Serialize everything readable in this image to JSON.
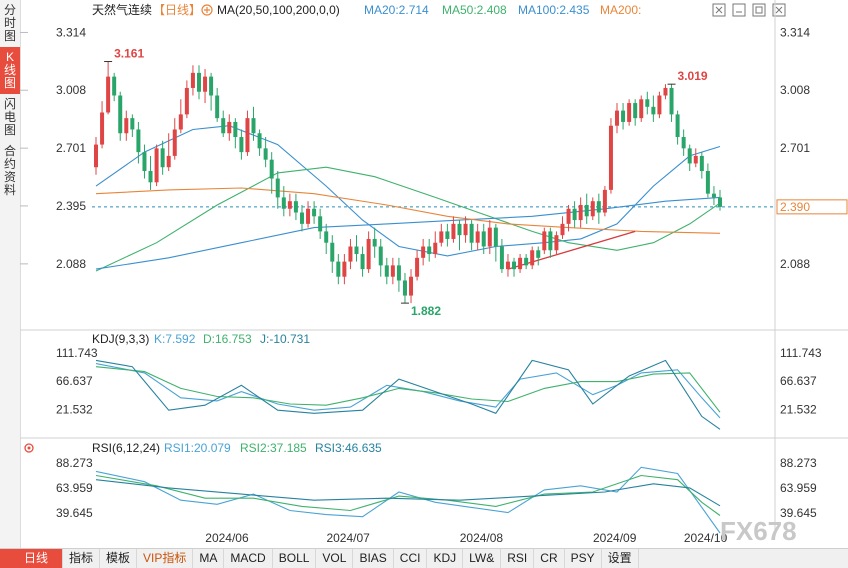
{
  "sidebar": {
    "tabs": [
      {
        "label": "分时图"
      },
      {
        "label": "K线图"
      },
      {
        "label": "闪电图"
      },
      {
        "label": "合约资料"
      }
    ]
  },
  "header": {
    "title": "天然气连续",
    "period": "【日线】",
    "ma_label": "MA(20,50,100,200,0,0)",
    "ma_values": [
      {
        "text": "MA20:2.714",
        "color": "#3a8fd0"
      },
      {
        "text": "MA50:2.408",
        "color": "#3fb26c"
      },
      {
        "text": "MA100:2.435",
        "color": "#3a8fd0"
      },
      {
        "text": "MA200:",
        "color": "#e8853a"
      }
    ]
  },
  "kdj_header": {
    "label": "KDJ(9,3,3)",
    "k": "K:7.592",
    "d": "D:16.753",
    "j": "J:-10.731"
  },
  "rsi_header": {
    "label": "RSI(6,12,24)",
    "rsi1": "RSI1:20.079",
    "rsi2": "RSI2:37.185",
    "rsi3": "RSI3:46.635"
  },
  "watermark": "FX678",
  "bottom_bar": {
    "items": [
      "日线",
      "指标",
      "模板",
      "VIP指标",
      "MA",
      "MACD",
      "BOLL",
      "VOL",
      "BIAS",
      "CCI",
      "KDJ",
      "LW&",
      "RSI",
      "CR",
      "PSY",
      "设置"
    ]
  },
  "chart_data": {
    "type": "candlestick",
    "price_axis": {
      "ticks": [
        3.314,
        3.008,
        2.701,
        2.395,
        2.088
      ],
      "range": [
        1.78,
        3.38
      ]
    },
    "x_axis": {
      "labels": [
        "2024/06",
        "2024/07",
        "2024/08",
        "2024/09",
        "2024/10"
      ]
    },
    "last_price": 2.39,
    "annotations": {
      "high": "3.161",
      "low": "1.882",
      "recent_high": "3.019"
    },
    "candles": [
      [
        2.6,
        2.72,
        2.56,
        2.76
      ],
      [
        2.72,
        2.89,
        2.7,
        2.95
      ],
      [
        2.89,
        3.08,
        2.88,
        3.16
      ],
      [
        3.08,
        2.98,
        2.95,
        3.1
      ],
      [
        2.98,
        2.78,
        2.74,
        3.0
      ],
      [
        2.78,
        2.86,
        2.74,
        2.9
      ],
      [
        2.86,
        2.8,
        2.76,
        2.88
      ],
      [
        2.8,
        2.68,
        2.62,
        2.84
      ],
      [
        2.68,
        2.58,
        2.54,
        2.72
      ],
      [
        2.58,
        2.52,
        2.48,
        2.66
      ],
      [
        2.52,
        2.7,
        2.5,
        2.72
      ],
      [
        2.7,
        2.6,
        2.56,
        2.74
      ],
      [
        2.6,
        2.66,
        2.58,
        2.78
      ],
      [
        2.66,
        2.8,
        2.64,
        2.86
      ],
      [
        2.8,
        2.88,
        2.78,
        2.96
      ],
      [
        2.88,
        3.02,
        2.86,
        3.06
      ],
      [
        3.02,
        3.1,
        2.98,
        3.14
      ],
      [
        3.1,
        3.0,
        2.96,
        3.14
      ],
      [
        3.0,
        3.08,
        2.94,
        3.12
      ],
      [
        3.08,
        2.98,
        2.9,
        3.1
      ],
      [
        2.98,
        2.86,
        2.84,
        3.02
      ],
      [
        2.86,
        2.78,
        2.76,
        2.9
      ],
      [
        2.78,
        2.84,
        2.74,
        2.88
      ],
      [
        2.84,
        2.76,
        2.7,
        2.86
      ],
      [
        2.76,
        2.68,
        2.64,
        2.8
      ],
      [
        2.68,
        2.86,
        2.66,
        2.9
      ],
      [
        2.86,
        2.78,
        2.74,
        2.92
      ],
      [
        2.78,
        2.7,
        2.66,
        2.8
      ],
      [
        2.7,
        2.64,
        2.6,
        2.76
      ],
      [
        2.64,
        2.54,
        2.46,
        2.68
      ],
      [
        2.54,
        2.44,
        2.38,
        2.58
      ],
      [
        2.44,
        2.38,
        2.34,
        2.5
      ],
      [
        2.38,
        2.42,
        2.34,
        2.46
      ],
      [
        2.42,
        2.36,
        2.32,
        2.46
      ],
      [
        2.36,
        2.3,
        2.26,
        2.4
      ],
      [
        2.3,
        2.38,
        2.28,
        2.42
      ],
      [
        2.38,
        2.34,
        2.3,
        2.42
      ],
      [
        2.34,
        2.26,
        2.22,
        2.38
      ],
      [
        2.26,
        2.2,
        2.14,
        2.3
      ],
      [
        2.2,
        2.1,
        2.04,
        2.24
      ],
      [
        2.1,
        2.02,
        1.98,
        2.14
      ],
      [
        2.02,
        2.1,
        1.98,
        2.14
      ],
      [
        2.1,
        2.18,
        2.06,
        2.22
      ],
      [
        2.18,
        2.14,
        2.1,
        2.24
      ],
      [
        2.14,
        2.06,
        2.02,
        2.18
      ],
      [
        2.06,
        2.22,
        2.04,
        2.26
      ],
      [
        2.22,
        2.18,
        2.12,
        2.28
      ],
      [
        2.18,
        2.08,
        2.02,
        2.22
      ],
      [
        2.08,
        2.02,
        1.98,
        2.12
      ],
      [
        2.02,
        2.08,
        1.98,
        2.12
      ],
      [
        2.08,
        2.0,
        1.94,
        2.12
      ],
      [
        2.0,
        1.92,
        1.88,
        2.04
      ],
      [
        1.92,
        2.02,
        1.88,
        2.06
      ],
      [
        2.02,
        2.12,
        2.0,
        2.16
      ],
      [
        2.12,
        2.18,
        2.08,
        2.22
      ],
      [
        2.18,
        2.14,
        2.1,
        2.22
      ],
      [
        2.14,
        2.2,
        2.12,
        2.26
      ],
      [
        2.2,
        2.26,
        2.18,
        2.3
      ],
      [
        2.26,
        2.22,
        2.18,
        2.3
      ],
      [
        2.22,
        2.3,
        2.2,
        2.34
      ],
      [
        2.3,
        2.24,
        2.16,
        2.32
      ],
      [
        2.24,
        2.3,
        2.2,
        2.34
      ],
      [
        2.3,
        2.2,
        2.16,
        2.32
      ],
      [
        2.2,
        2.26,
        2.16,
        2.3
      ],
      [
        2.26,
        2.18,
        2.14,
        2.3
      ],
      [
        2.18,
        2.28,
        2.14,
        2.32
      ],
      [
        2.28,
        2.18,
        2.1,
        2.3
      ],
      [
        2.18,
        2.06,
        2.04,
        2.22
      ],
      [
        2.06,
        2.1,
        2.02,
        2.14
      ],
      [
        2.1,
        2.06,
        2.02,
        2.12
      ],
      [
        2.06,
        2.12,
        2.04,
        2.14
      ],
      [
        2.12,
        2.08,
        2.06,
        2.14
      ],
      [
        2.08,
        2.16,
        2.06,
        2.18
      ],
      [
        2.16,
        2.12,
        2.08,
        2.18
      ],
      [
        2.16,
        2.26,
        2.14,
        2.28
      ],
      [
        2.26,
        2.16,
        2.12,
        2.28
      ],
      [
        2.16,
        2.24,
        2.14,
        2.26
      ],
      [
        2.24,
        2.3,
        2.22,
        2.34
      ],
      [
        2.3,
        2.38,
        2.26,
        2.4
      ],
      [
        2.38,
        2.32,
        2.28,
        2.42
      ],
      [
        2.32,
        2.4,
        2.28,
        2.44
      ],
      [
        2.4,
        2.34,
        2.3,
        2.46
      ],
      [
        2.34,
        2.42,
        2.32,
        2.44
      ],
      [
        2.42,
        2.36,
        2.3,
        2.46
      ],
      [
        2.36,
        2.48,
        2.34,
        2.5
      ],
      [
        2.48,
        2.82,
        2.46,
        2.86
      ],
      [
        2.82,
        2.9,
        2.78,
        2.94
      ],
      [
        2.9,
        2.84,
        2.8,
        2.94
      ],
      [
        2.84,
        2.94,
        2.82,
        2.96
      ],
      [
        2.94,
        2.86,
        2.82,
        2.96
      ],
      [
        2.86,
        2.96,
        2.84,
        2.98
      ],
      [
        2.96,
        2.92,
        2.88,
        3.0
      ],
      [
        2.92,
        2.88,
        2.84,
        2.98
      ],
      [
        2.88,
        2.98,
        2.86,
        3.0
      ],
      [
        2.98,
        3.02,
        2.96,
        3.04
      ],
      [
        3.02,
        2.88,
        2.84,
        3.04
      ],
      [
        2.88,
        2.76,
        2.72,
        2.9
      ],
      [
        2.76,
        2.7,
        2.66,
        2.8
      ],
      [
        2.7,
        2.62,
        2.58,
        2.72
      ],
      [
        2.62,
        2.66,
        2.6,
        2.7
      ],
      [
        2.66,
        2.58,
        2.54,
        2.68
      ],
      [
        2.58,
        2.46,
        2.44,
        2.62
      ],
      [
        2.46,
        2.44,
        2.4,
        2.5
      ],
      [
        2.44,
        2.39,
        2.37,
        2.48
      ]
    ],
    "ma_series": [
      {
        "name": "MA20",
        "color": "#3a8fd0",
        "points": [
          [
            0,
            2.5
          ],
          [
            8,
            2.68
          ],
          [
            16,
            2.8
          ],
          [
            22,
            2.82
          ],
          [
            30,
            2.72
          ],
          [
            38,
            2.5
          ],
          [
            44,
            2.32
          ],
          [
            50,
            2.18
          ],
          [
            58,
            2.13
          ],
          [
            66,
            2.18
          ],
          [
            74,
            2.2
          ],
          [
            80,
            2.22
          ],
          [
            86,
            2.3
          ],
          [
            92,
            2.5
          ],
          [
            98,
            2.66
          ],
          [
            103,
            2.71
          ]
        ]
      },
      {
        "name": "MA50",
        "color": "#3fb26c",
        "points": [
          [
            0,
            2.05
          ],
          [
            10,
            2.2
          ],
          [
            20,
            2.4
          ],
          [
            30,
            2.57
          ],
          [
            38,
            2.6
          ],
          [
            46,
            2.55
          ],
          [
            56,
            2.44
          ],
          [
            64,
            2.35
          ],
          [
            72,
            2.26
          ],
          [
            78,
            2.2
          ],
          [
            86,
            2.16
          ],
          [
            92,
            2.2
          ],
          [
            98,
            2.3
          ],
          [
            103,
            2.41
          ]
        ]
      },
      {
        "name": "MA100",
        "color": "#3a8fd0",
        "points": [
          [
            0,
            2.06
          ],
          [
            12,
            2.12
          ],
          [
            24,
            2.2
          ],
          [
            36,
            2.28
          ],
          [
            48,
            2.3
          ],
          [
            60,
            2.32
          ],
          [
            72,
            2.34
          ],
          [
            84,
            2.38
          ],
          [
            94,
            2.42
          ],
          [
            103,
            2.44
          ]
        ]
      },
      {
        "name": "MA200",
        "color": "#e8853a",
        "points": [
          [
            0,
            2.46
          ],
          [
            12,
            2.48
          ],
          [
            24,
            2.49
          ],
          [
            36,
            2.46
          ],
          [
            48,
            2.4
          ],
          [
            58,
            2.34
          ],
          [
            68,
            2.3
          ],
          [
            78,
            2.28
          ],
          [
            90,
            2.26
          ],
          [
            103,
            2.25
          ]
        ]
      }
    ],
    "trendline": {
      "from": [
        68,
        2.06
      ],
      "to": [
        89,
        2.26
      ],
      "color": "#d63a3a"
    },
    "kdj_axis": {
      "ticks": [
        111.743,
        66.637,
        21.532
      ],
      "range": [
        -15,
        120
      ]
    },
    "kdj_series": [
      {
        "name": "K",
        "color": "#4aa3d6",
        "points": [
          [
            0,
            95
          ],
          [
            8,
            80
          ],
          [
            14,
            40
          ],
          [
            20,
            35
          ],
          [
            24,
            50
          ],
          [
            30,
            30
          ],
          [
            36,
            20
          ],
          [
            42,
            25
          ],
          [
            48,
            60
          ],
          [
            54,
            50
          ],
          [
            60,
            35
          ],
          [
            66,
            25
          ],
          [
            70,
            70
          ],
          [
            76,
            80
          ],
          [
            82,
            45
          ],
          [
            86,
            60
          ],
          [
            90,
            80
          ],
          [
            96,
            85
          ],
          [
            100,
            40
          ],
          [
            103,
            7.6
          ]
        ]
      },
      {
        "name": "D",
        "color": "#3fb26c",
        "points": [
          [
            0,
            90
          ],
          [
            8,
            82
          ],
          [
            14,
            55
          ],
          [
            20,
            42
          ],
          [
            26,
            40
          ],
          [
            32,
            30
          ],
          [
            38,
            28
          ],
          [
            44,
            40
          ],
          [
            50,
            55
          ],
          [
            56,
            48
          ],
          [
            62,
            38
          ],
          [
            68,
            34
          ],
          [
            74,
            55
          ],
          [
            80,
            66
          ],
          [
            86,
            66
          ],
          [
            92,
            78
          ],
          [
            98,
            80
          ],
          [
            103,
            16.8
          ]
        ]
      },
      {
        "name": "J",
        "color": "#27829f",
        "points": [
          [
            0,
            100
          ],
          [
            6,
            90
          ],
          [
            12,
            20
          ],
          [
            18,
            28
          ],
          [
            24,
            60
          ],
          [
            30,
            20
          ],
          [
            36,
            15
          ],
          [
            44,
            20
          ],
          [
            50,
            70
          ],
          [
            56,
            50
          ],
          [
            62,
            30
          ],
          [
            66,
            15
          ],
          [
            72,
            100
          ],
          [
            78,
            85
          ],
          [
            82,
            30
          ],
          [
            88,
            75
          ],
          [
            94,
            100
          ],
          [
            100,
            10
          ],
          [
            103,
            -10.7
          ]
        ]
      }
    ],
    "rsi_axis": {
      "ticks": [
        88.273,
        63.959,
        39.645
      ],
      "range": [
        25,
        95
      ]
    },
    "rsi_series": [
      {
        "name": "RSI1",
        "color": "#4aa3d6",
        "points": [
          [
            0,
            80
          ],
          [
            8,
            70
          ],
          [
            14,
            52
          ],
          [
            20,
            48
          ],
          [
            26,
            58
          ],
          [
            32,
            42
          ],
          [
            38,
            38
          ],
          [
            44,
            36
          ],
          [
            50,
            60
          ],
          [
            56,
            50
          ],
          [
            62,
            45
          ],
          [
            68,
            40
          ],
          [
            74,
            62
          ],
          [
            80,
            66
          ],
          [
            86,
            60
          ],
          [
            90,
            84
          ],
          [
            96,
            78
          ],
          [
            100,
            45
          ],
          [
            103,
            20.1
          ]
        ]
      },
      {
        "name": "RSI2",
        "color": "#3fb26c",
        "points": [
          [
            0,
            76
          ],
          [
            10,
            66
          ],
          [
            18,
            54
          ],
          [
            26,
            54
          ],
          [
            34,
            46
          ],
          [
            42,
            42
          ],
          [
            50,
            56
          ],
          [
            58,
            52
          ],
          [
            66,
            46
          ],
          [
            74,
            58
          ],
          [
            82,
            60
          ],
          [
            90,
            76
          ],
          [
            96,
            72
          ],
          [
            100,
            50
          ],
          [
            103,
            37.2
          ]
        ]
      },
      {
        "name": "RSI3",
        "color": "#27829f",
        "points": [
          [
            0,
            72
          ],
          [
            12,
            64
          ],
          [
            24,
            58
          ],
          [
            36,
            52
          ],
          [
            48,
            54
          ],
          [
            60,
            52
          ],
          [
            72,
            56
          ],
          [
            84,
            60
          ],
          [
            92,
            68
          ],
          [
            98,
            64
          ],
          [
            103,
            46.6
          ]
        ]
      }
    ]
  }
}
